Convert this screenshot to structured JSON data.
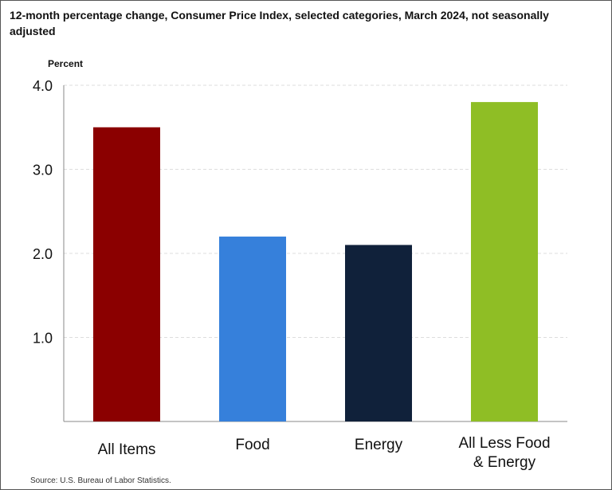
{
  "chart_data": {
    "type": "bar",
    "title": "12-month percentage change, Consumer Price Index, selected categories, March 2024, not seasonally adjusted",
    "ylabel": "Percent",
    "xlabel": "",
    "categories": [
      [
        "All Items"
      ],
      [
        "Food"
      ],
      [
        "Energy"
      ],
      [
        "All Less Food",
        "& Energy"
      ]
    ],
    "values": [
      3.5,
      2.2,
      2.1,
      3.8
    ],
    "colors": [
      "#8b0000",
      "#3680db",
      "#10213a",
      "#8fbe25"
    ],
    "ylim": [
      0,
      4.0
    ],
    "yticks": [
      1.0,
      2.0,
      3.0,
      4.0
    ],
    "ytick_labels": [
      "1.0",
      "2.0",
      "3.0",
      "4.0"
    ],
    "grid": true,
    "grid_color": "#dddddd",
    "source": "Source: U.S. Bureau of Labor Statistics."
  }
}
